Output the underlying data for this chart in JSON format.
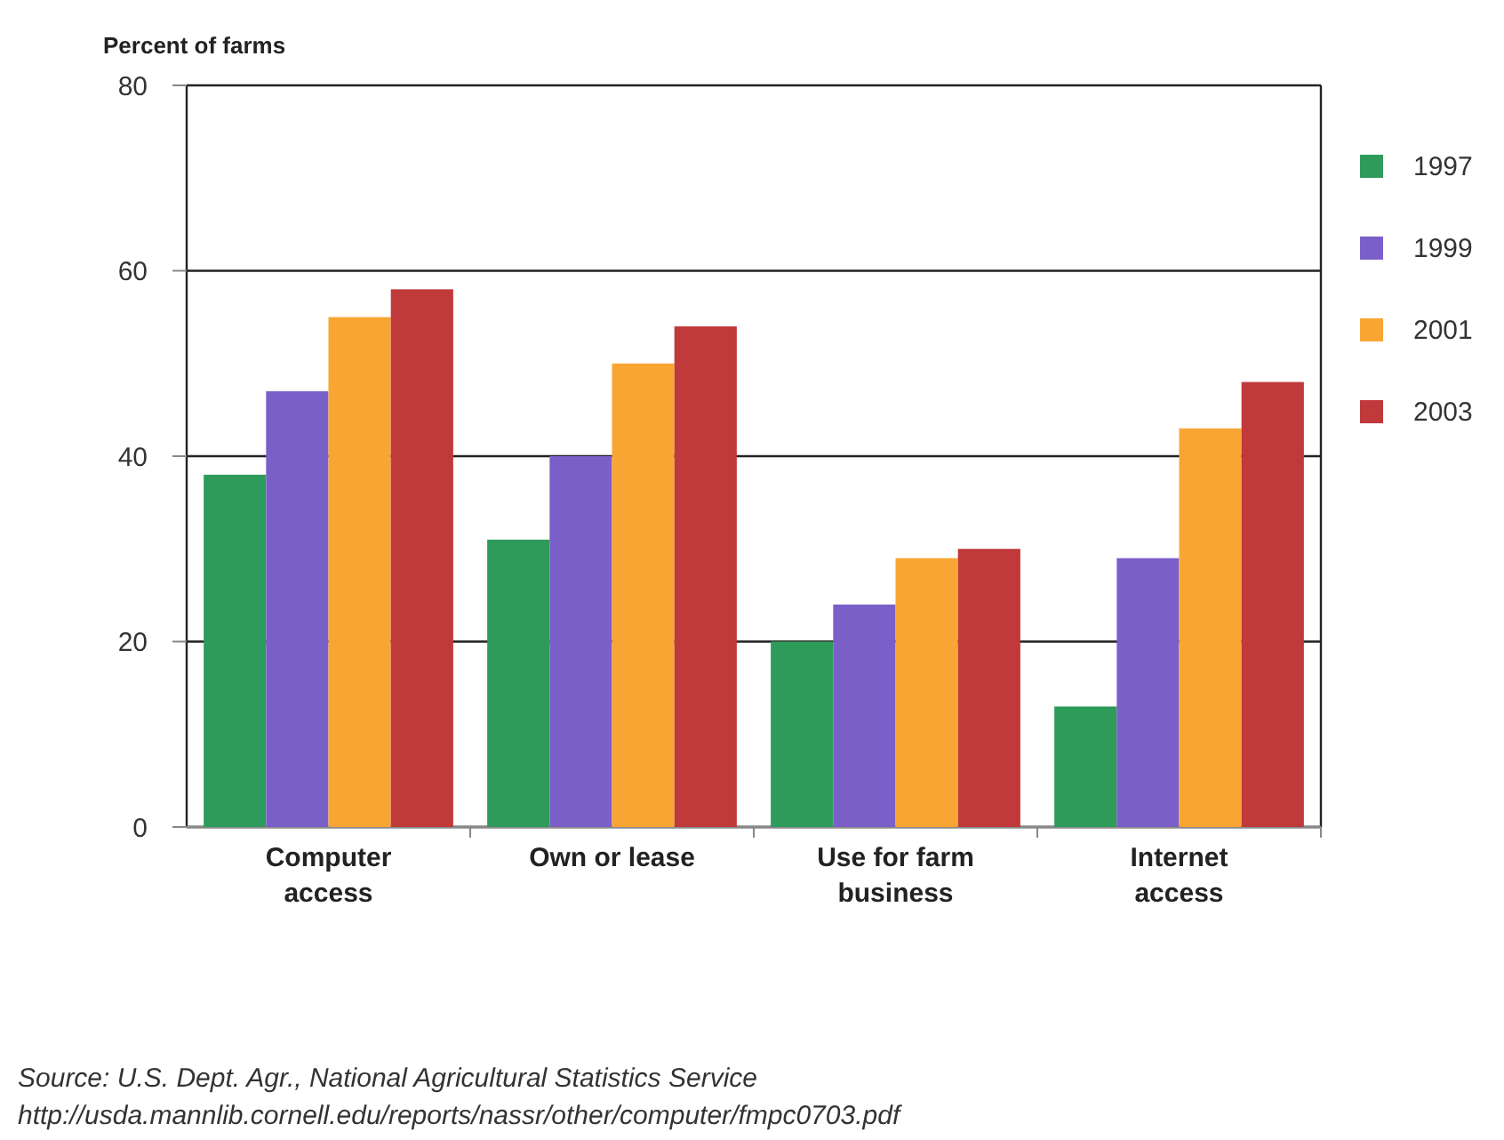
{
  "chart_data": {
    "type": "bar",
    "ylabel": "Percent of farms",
    "categories": [
      "Computer access",
      "Own or lease",
      "Use for farm business",
      "Internet access"
    ],
    "series": [
      {
        "name": "1997",
        "color": "#2e9b5a",
        "values": [
          38,
          31,
          20,
          13
        ]
      },
      {
        "name": "1999",
        "color": "#7b5fc9",
        "values": [
          47,
          40,
          24,
          29
        ]
      },
      {
        "name": "2001",
        "color": "#f9a533",
        "values": [
          55,
          50,
          29,
          43
        ]
      },
      {
        "name": "2003",
        "color": "#c0393b",
        "values": [
          58,
          54,
          30,
          48
        ]
      }
    ],
    "ylim": [
      0,
      80
    ],
    "yticks": [
      0,
      20,
      40,
      60,
      80
    ],
    "grid": "y",
    "legend": "right",
    "annotations": [
      "Source:  U.S. Dept. Agr., National Agricultural Statistics Service",
      "http://usda.mannlib.cornell.edu/reports/nassr/other/computer/fmpc0703.pdf"
    ]
  }
}
